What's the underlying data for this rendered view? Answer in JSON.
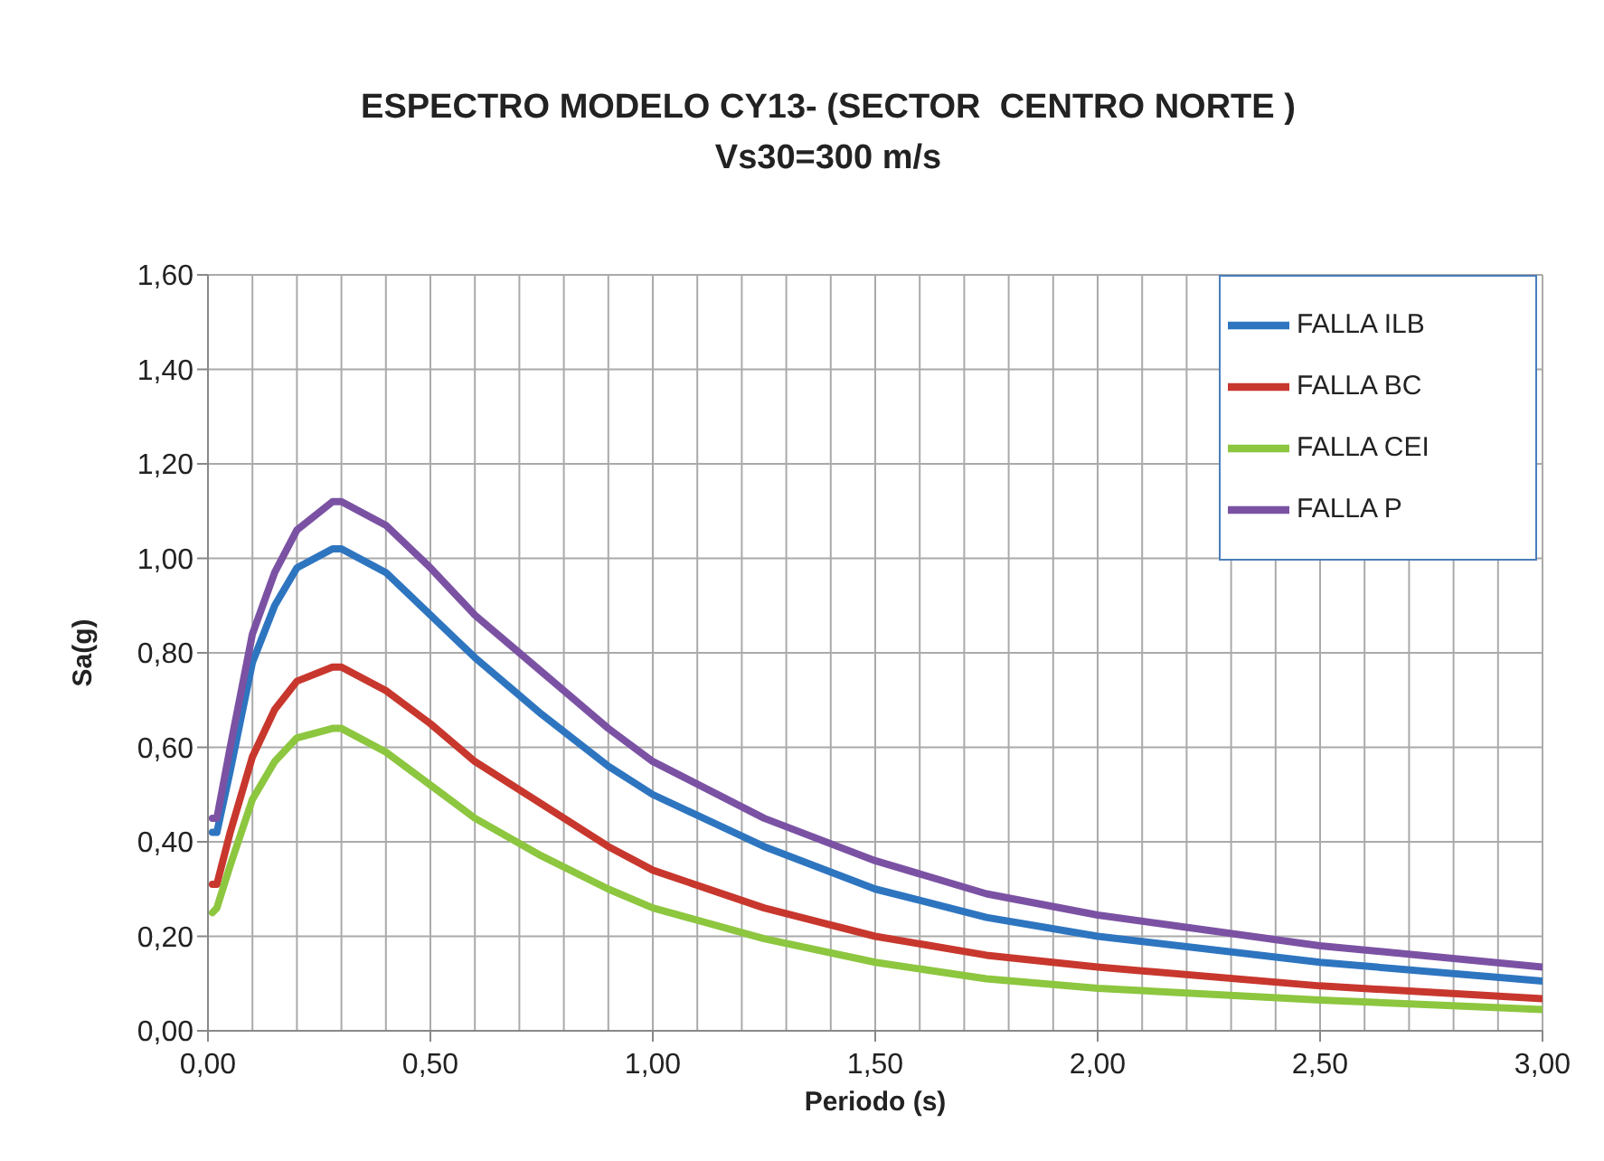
{
  "chart_data": {
    "type": "line",
    "title": "ESPECTRO MODELO CY13- (SECTOR  CENTRO NORTE )",
    "subtitle": "Vs30=300 m/s",
    "xlabel": "Periodo (s)",
    "ylabel": "Sa(g)",
    "x": [
      0.01,
      0.02,
      0.05,
      0.1,
      0.15,
      0.2,
      0.28,
      0.3,
      0.4,
      0.5,
      0.6,
      0.75,
      0.9,
      1.0,
      1.25,
      1.5,
      1.75,
      2.0,
      2.5,
      3.0
    ],
    "series": [
      {
        "name": "FALLA ILB",
        "color": "#2e75c0",
        "values": [
          0.42,
          0.42,
          0.55,
          0.78,
          0.9,
          0.98,
          1.02,
          1.02,
          0.97,
          0.88,
          0.79,
          0.67,
          0.56,
          0.5,
          0.39,
          0.3,
          0.24,
          0.2,
          0.145,
          0.105
        ]
      },
      {
        "name": "FALLA BC",
        "color": "#c8372d",
        "values": [
          0.31,
          0.31,
          0.42,
          0.58,
          0.68,
          0.74,
          0.77,
          0.77,
          0.72,
          0.65,
          0.57,
          0.48,
          0.39,
          0.34,
          0.26,
          0.2,
          0.16,
          0.135,
          0.095,
          0.068
        ]
      },
      {
        "name": "FALLA CEI",
        "color": "#8dc63f",
        "values": [
          0.25,
          0.26,
          0.35,
          0.49,
          0.57,
          0.62,
          0.64,
          0.64,
          0.59,
          0.52,
          0.45,
          0.37,
          0.3,
          0.26,
          0.195,
          0.145,
          0.11,
          0.09,
          0.065,
          0.045
        ]
      },
      {
        "name": "FALLA P",
        "color": "#7b52a3",
        "values": [
          0.45,
          0.45,
          0.6,
          0.84,
          0.97,
          1.06,
          1.12,
          1.12,
          1.07,
          0.98,
          0.88,
          0.76,
          0.64,
          0.57,
          0.45,
          0.36,
          0.29,
          0.245,
          0.18,
          0.135
        ]
      }
    ],
    "xlim": [
      0,
      3
    ],
    "xticks": [
      {
        "value": 0,
        "label": "0,00"
      },
      {
        "value": 0.5,
        "label": "0,50"
      },
      {
        "value": 1,
        "label": "1,00"
      },
      {
        "value": 1.5,
        "label": "1,50"
      },
      {
        "value": 2,
        "label": "2,00"
      },
      {
        "value": 2.5,
        "label": "2,50"
      },
      {
        "value": 3,
        "label": "3,00"
      }
    ],
    "ylim": [
      0,
      1.6
    ],
    "yticks": [
      {
        "value": 0,
        "label": "0,00"
      },
      {
        "value": 0.2,
        "label": "0,20"
      },
      {
        "value": 0.4,
        "label": "0,40"
      },
      {
        "value": 0.6,
        "label": "0,60"
      },
      {
        "value": 0.8,
        "label": "0,80"
      },
      {
        "value": 1,
        "label": "1,00"
      },
      {
        "value": 1.2,
        "label": "1,20"
      },
      {
        "value": 1.4,
        "label": "1,40"
      },
      {
        "value": 1.6,
        "label": "1,60"
      }
    ],
    "grid": true,
    "legend": "top right",
    "marker": "none",
    "line_style": "solid"
  }
}
